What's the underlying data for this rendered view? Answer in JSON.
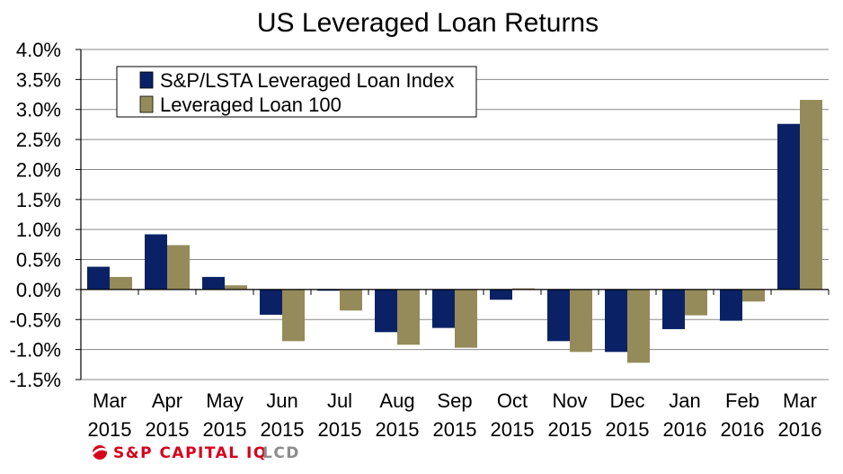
{
  "chart_data": {
    "type": "bar",
    "title": "US Leveraged Loan Returns",
    "xlabel": "",
    "ylabel": "",
    "ylim": [
      -1.5,
      4.0
    ],
    "yticks": [
      4.0,
      3.5,
      3.0,
      2.5,
      2.0,
      1.5,
      1.0,
      0.5,
      0.0,
      -0.5,
      -1.0,
      -1.5
    ],
    "ytick_labels": [
      "4.0%",
      "3.5%",
      "3.0%",
      "2.5%",
      "2.0%",
      "1.5%",
      "1.0%",
      "0.5%",
      "0.0%",
      "-0.5%",
      "-1.0%",
      "-1.5%"
    ],
    "categories": [
      {
        "month": "Mar",
        "year": "2015"
      },
      {
        "month": "Apr",
        "year": "2015"
      },
      {
        "month": "May",
        "year": "2015"
      },
      {
        "month": "Jun",
        "year": "2015"
      },
      {
        "month": "Jul",
        "year": "2015"
      },
      {
        "month": "Aug",
        "year": "2015"
      },
      {
        "month": "Sep",
        "year": "2015"
      },
      {
        "month": "Oct",
        "year": "2015"
      },
      {
        "month": "Nov",
        "year": "2015"
      },
      {
        "month": "Dec",
        "year": "2015"
      },
      {
        "month": "Jan",
        "year": "2016"
      },
      {
        "month": "Feb",
        "year": "2016"
      },
      {
        "month": "Mar",
        "year": "2016"
      }
    ],
    "series": [
      {
        "name": "S&P/LSTA Leveraged Loan Index",
        "color": "#0a2265",
        "values": [
          0.38,
          0.92,
          0.21,
          -0.42,
          -0.02,
          -0.71,
          -0.64,
          -0.17,
          -0.86,
          -1.04,
          -0.66,
          -0.52,
          2.76
        ]
      },
      {
        "name": "Leveraged Loan 100",
        "color": "#958b5a",
        "values": [
          0.21,
          0.74,
          0.07,
          -0.86,
          -0.35,
          -0.92,
          -0.97,
          0.02,
          -1.04,
          -1.22,
          -0.43,
          -0.2,
          3.16
        ]
      }
    ],
    "grid": true,
    "legend_position": "top-left"
  },
  "logo": {
    "brand": "S&P CAPITAL IQ",
    "product": "LCD",
    "brand_color": "#d6001c",
    "product_color": "#8c8c8c"
  }
}
